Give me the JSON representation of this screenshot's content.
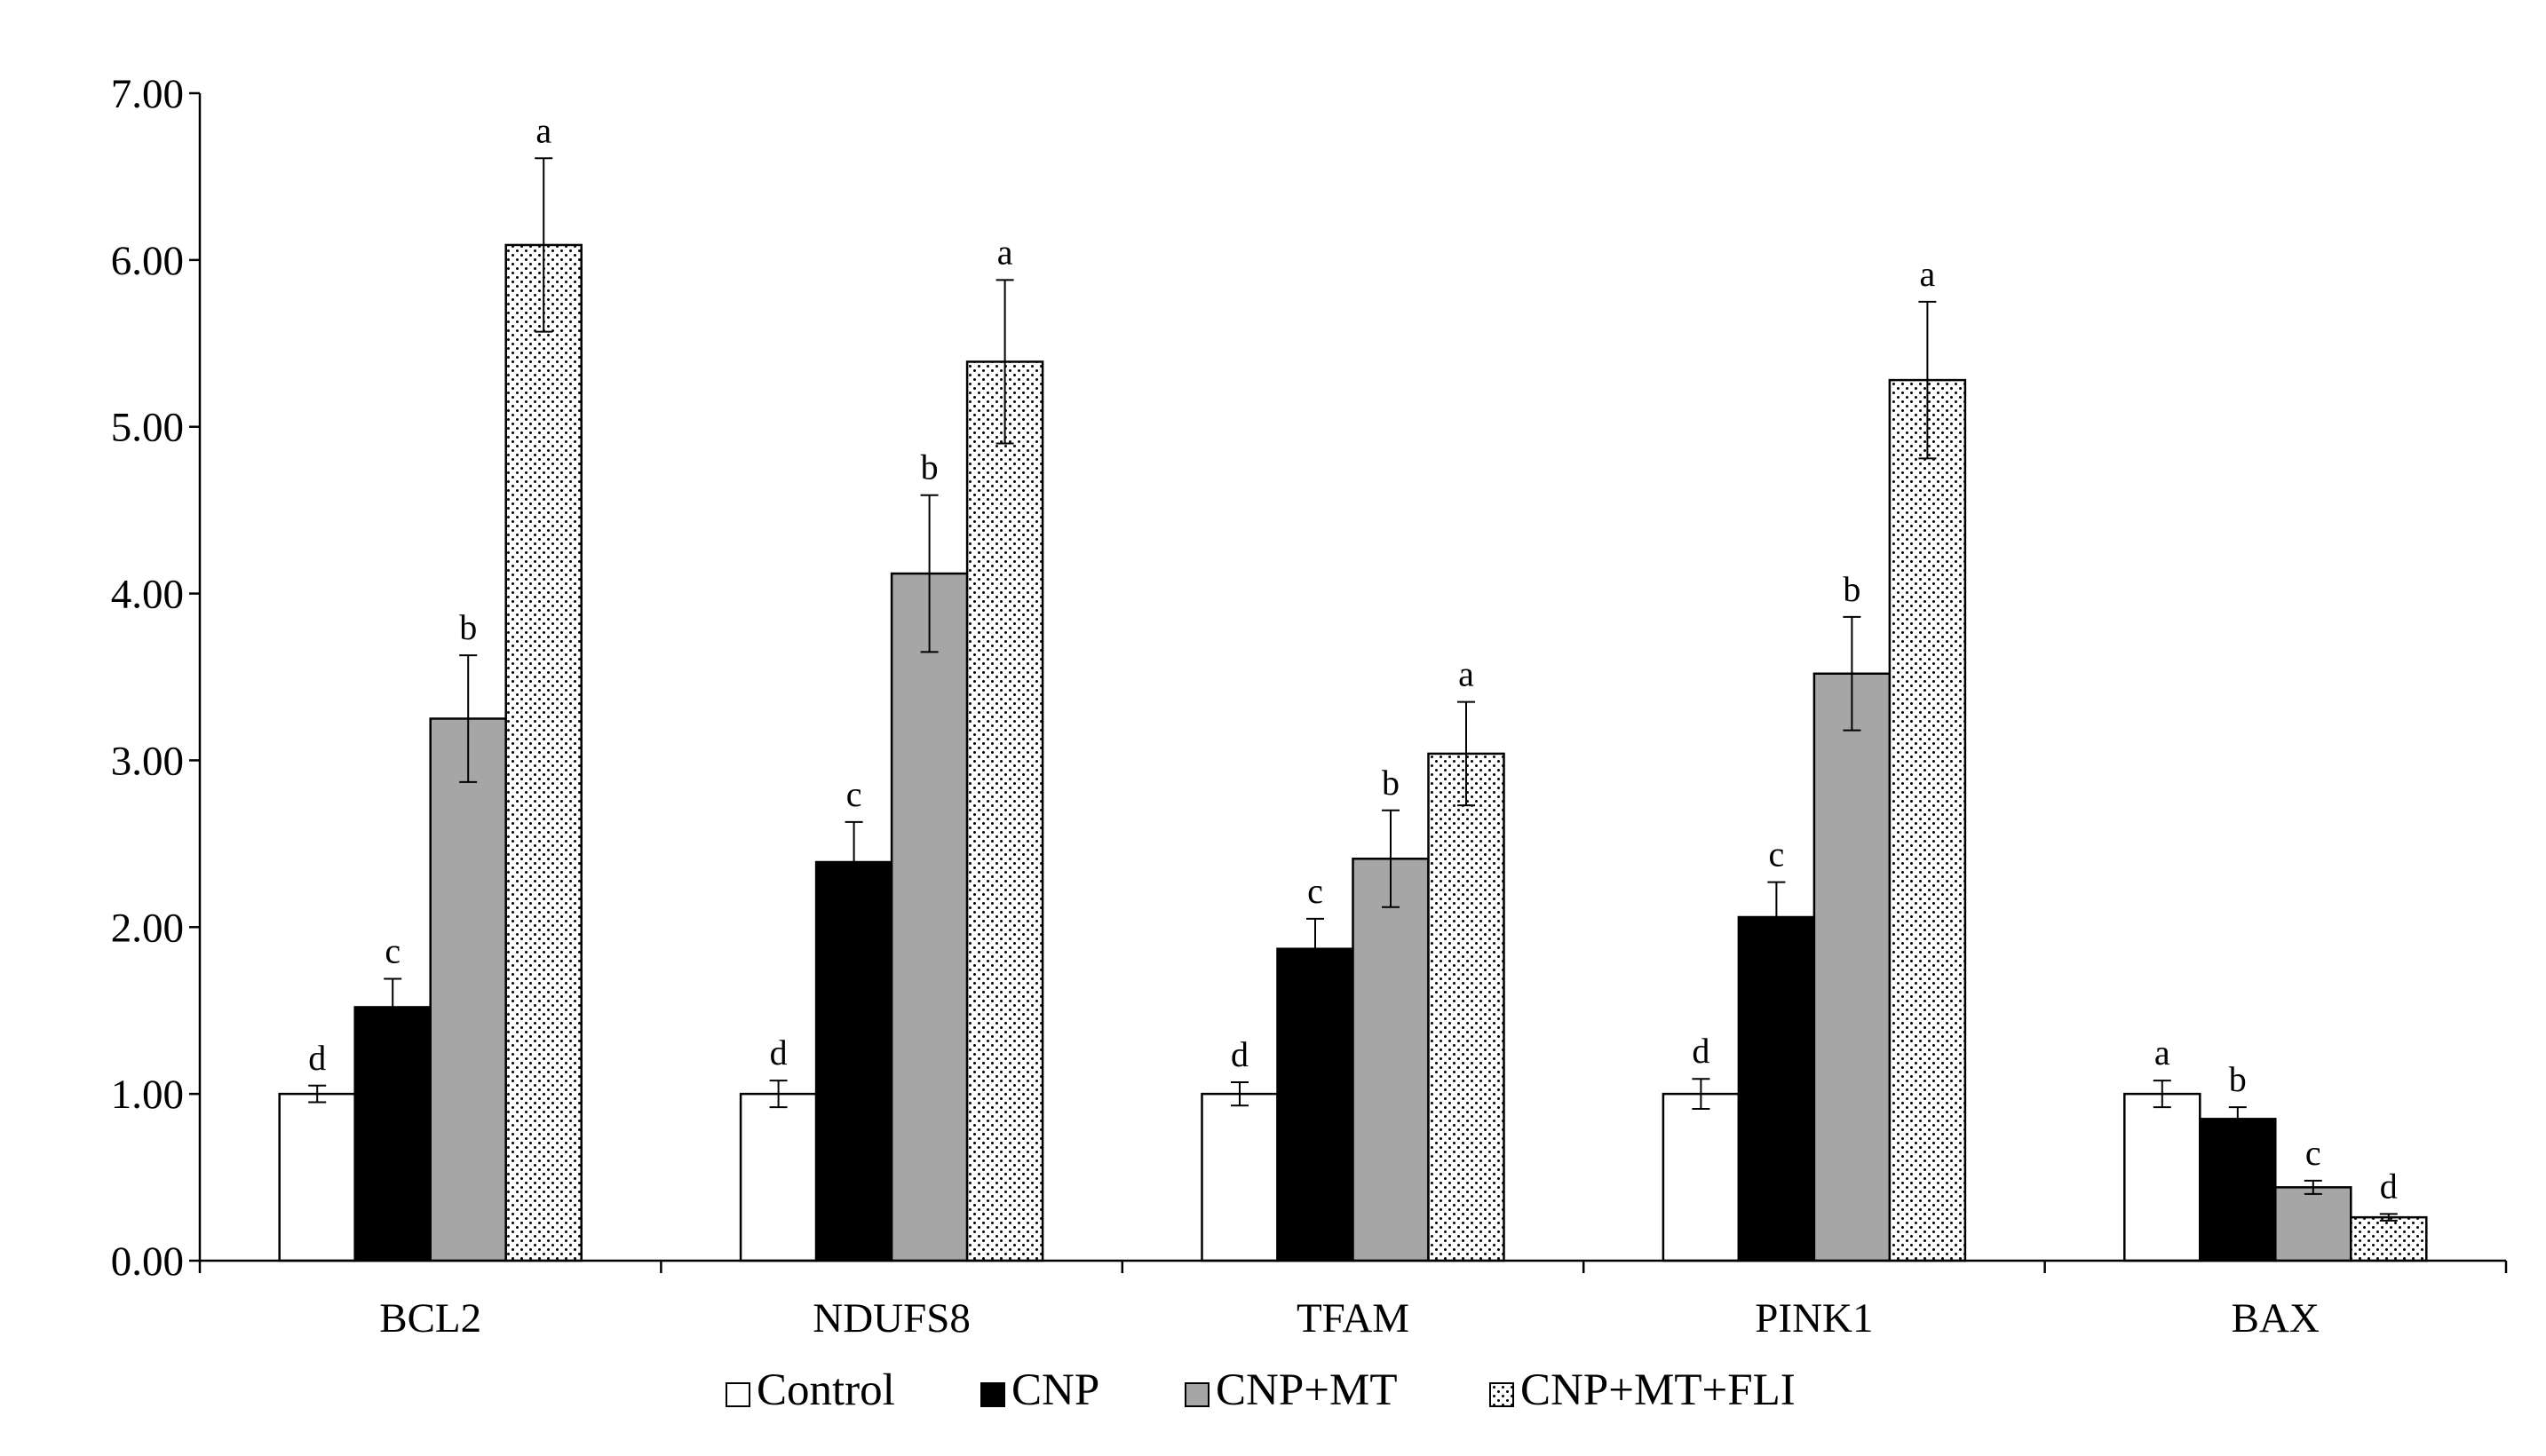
{
  "chart_data": {
    "type": "bar",
    "title": "",
    "xlabel": "",
    "ylabel": "",
    "ylim": [
      0,
      7
    ],
    "yticks": [
      0,
      1,
      2,
      3,
      4,
      5,
      6,
      7
    ],
    "ytick_labels": [
      "0.00",
      "1.00",
      "2.00",
      "3.00",
      "4.00",
      "5.00",
      "6.00",
      "7.00"
    ],
    "grid": false,
    "legend_position": "bottom",
    "categories": [
      "BCL2",
      "NDUFS8",
      "TFAM",
      "PINK1",
      "BAX"
    ],
    "series": [
      {
        "name": "Control",
        "fill": "#ffffff",
        "pattern": "none",
        "values": [
          1.0,
          1.0,
          1.0,
          1.0,
          1.0
        ],
        "errors": [
          0.05,
          0.08,
          0.07,
          0.09,
          0.08
        ],
        "letters": [
          "d",
          "d",
          "d",
          "d",
          "a"
        ]
      },
      {
        "name": "CNP",
        "fill": "#000000",
        "pattern": "none",
        "values": [
          1.52,
          2.39,
          1.87,
          2.06,
          0.85
        ],
        "errors": [
          0.17,
          0.24,
          0.18,
          0.21,
          0.07
        ],
        "letters": [
          "c",
          "c",
          "c",
          "c",
          "b"
        ]
      },
      {
        "name": "CNP+MT",
        "fill": "#a6a6a6",
        "pattern": "none",
        "values": [
          3.25,
          4.12,
          2.41,
          3.52,
          0.44
        ],
        "errors": [
          0.38,
          0.47,
          0.29,
          0.34,
          0.04
        ],
        "letters": [
          "b",
          "b",
          "b",
          "b",
          "c"
        ]
      },
      {
        "name": "CNP+MT+FLI",
        "fill": "#ffffff",
        "pattern": "dots",
        "values": [
          6.09,
          5.39,
          3.04,
          5.28,
          0.26
        ],
        "errors": [
          0.52,
          0.49,
          0.31,
          0.47,
          0.02
        ],
        "letters": [
          "a",
          "a",
          "a",
          "a",
          "d"
        ]
      }
    ]
  }
}
